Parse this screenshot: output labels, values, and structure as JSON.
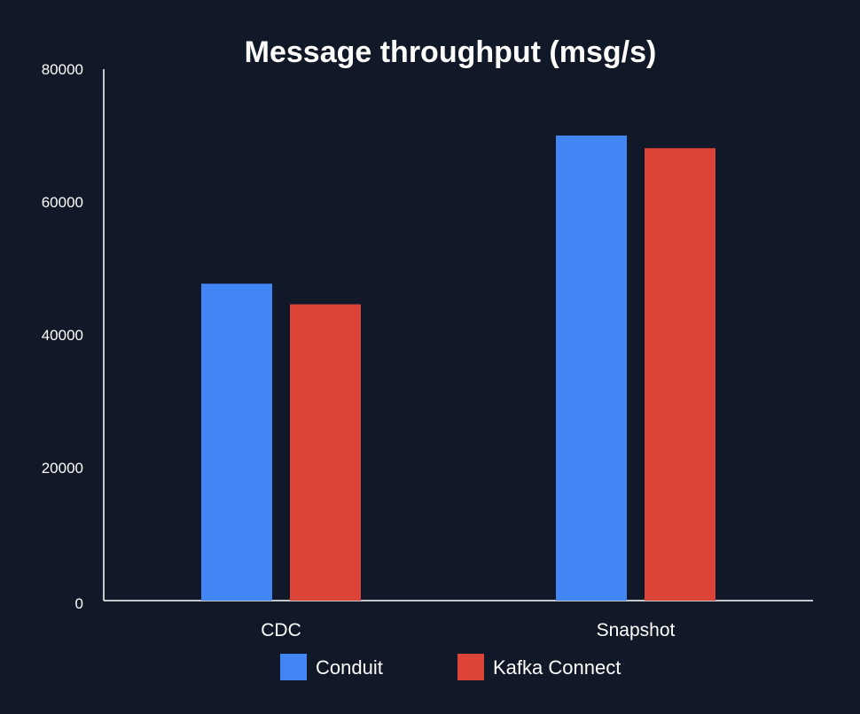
{
  "chart_data": {
    "type": "bar",
    "title": "Message throughput (msg/s)",
    "xlabel": "",
    "ylabel": "",
    "categories": [
      "CDC",
      "Snapshot"
    ],
    "series": [
      {
        "name": "Conduit",
        "color": "#4285F4",
        "values": [
          47700,
          70000
        ]
      },
      {
        "name": "Kafka Connect",
        "color": "#DB4437",
        "values": [
          44600,
          68100
        ]
      }
    ],
    "ylim": [
      0,
      80000
    ],
    "yticks": [
      "0",
      "20000",
      "40000",
      "60000",
      "80000"
    ],
    "grid": false,
    "legend_position": "bottom-center"
  },
  "colors": {
    "background": "#111827",
    "axis": "#ffffff",
    "text": "#ffffff"
  }
}
